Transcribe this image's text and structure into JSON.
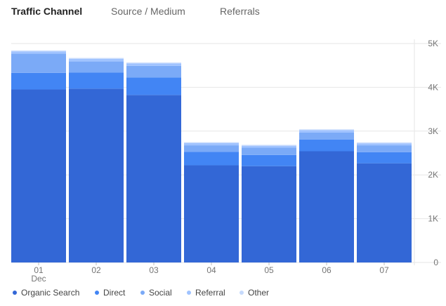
{
  "tabs": [
    {
      "label": "Traffic Channel",
      "active": true
    },
    {
      "label": "Source / Medium",
      "active": false
    },
    {
      "label": "Referrals",
      "active": false
    }
  ],
  "colors": {
    "organic": "#3367d6",
    "direct": "#4285f4",
    "social": "#7baaf7",
    "referral": "#a0c3ff",
    "other": "#c6dafc",
    "grid": "#e6e6e6",
    "axis_text": "#757575"
  },
  "chart_data": {
    "type": "bar",
    "stacked": true,
    "categories": [
      "01",
      "02",
      "03",
      "04",
      "05",
      "06",
      "07"
    ],
    "category_sublabels": [
      "Dec",
      "",
      "",
      "",
      "",
      "",
      ""
    ],
    "y_ticks": [
      "0",
      "1K",
      "2K",
      "3K",
      "4K",
      "5K"
    ],
    "ylim": [
      0,
      5000
    ],
    "y_axis_position": "right",
    "grid": true,
    "legend_position": "bottom-left",
    "series": [
      {
        "name": "Organic Search",
        "color": "#3367d6",
        "values": [
          3950,
          3970,
          3825,
          2220,
          2200,
          2540,
          2265
        ]
      },
      {
        "name": "Direct",
        "color": "#4285f4",
        "values": [
          380,
          370,
          400,
          305,
          255,
          265,
          255
        ]
      },
      {
        "name": "Social",
        "color": "#7baaf7",
        "values": [
          440,
          250,
          265,
          150,
          165,
          165,
          155
        ]
      },
      {
        "name": "Referral",
        "color": "#a0c3ff",
        "values": [
          50,
          60,
          55,
          50,
          45,
          50,
          45
        ]
      },
      {
        "name": "Other",
        "color": "#c6dafc",
        "values": [
          20,
          20,
          20,
          20,
          20,
          20,
          20
        ]
      }
    ]
  }
}
